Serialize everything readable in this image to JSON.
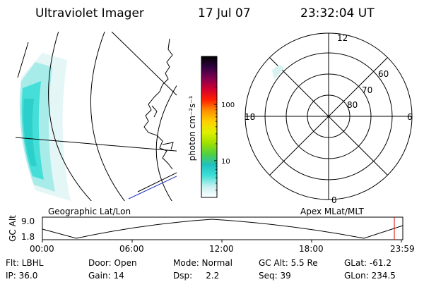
{
  "header": {
    "instrument": "Ultraviolet Imager",
    "date": "17 Jul 07",
    "time": "23:32:04 UT"
  },
  "colorbar": {
    "unit_label": "photon cm⁻²s⁻¹",
    "ticks": [
      {
        "label": "100",
        "value": 100
      },
      {
        "label": "10",
        "value": 10
      }
    ],
    "colors": [
      "#ffffff",
      "#c8f0f0",
      "#3ee0d8",
      "#20c0c0",
      "#50d040",
      "#a0e000",
      "#e0f000",
      "#ffd000",
      "#ff9000",
      "#ff2000",
      "#d00030",
      "#800050",
      "#300040",
      "#000000"
    ]
  },
  "map_labels": {
    "geographic": "Geographic Lat/Lon",
    "apex": "Apex MLat/MLT"
  },
  "polar_plot": {
    "mlt_labels": {
      "top": "12",
      "left": "18",
      "right": "6",
      "bottom": "0"
    },
    "lat_labels": [
      "60",
      "70",
      "80"
    ]
  },
  "altitude_plot": {
    "ylabel": "GC Alt",
    "y_ticks": [
      "9.0",
      "1.8"
    ],
    "x_ticks": [
      "00:00",
      "06:00",
      "12:00",
      "18:00",
      "23:59"
    ]
  },
  "info": {
    "filter": "Flt: LBHL",
    "ip": "IP: 36.0",
    "door": "Door: Open",
    "gain": "Gain: 14",
    "mode": "Mode: Normal",
    "dsp": "Dsp:     2.2",
    "gc_alt": "GC Alt: 5.5 Re",
    "seq": "Seq: 39",
    "glat": "GLat: -61.2",
    "glon": "GLon: 234.5"
  }
}
